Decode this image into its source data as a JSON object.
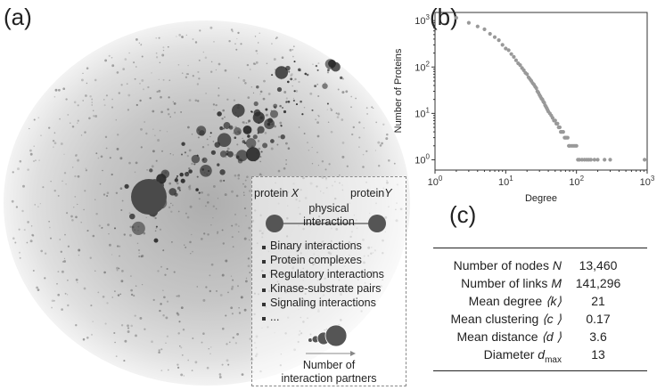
{
  "panel_a": {
    "label": "(a)",
    "legend": {
      "protein_x_prefix": "protein ",
      "protein_x_var": "X",
      "protein_y_prefix": "protein",
      "protein_y_var": "Y",
      "link_label_1": "physical",
      "link_label_2": "interaction",
      "items": [
        "Binary interactions",
        "Protein complexes",
        "Regulatory interactions",
        "Kinase-substrate pairs",
        "Signaling interactions",
        "..."
      ],
      "size_caption_1": "Number of",
      "size_caption_2": "interaction partners"
    },
    "colors": {
      "halo": "#cfcfcf",
      "core": "#9a9a9a",
      "hub": "#2b2b2b"
    }
  },
  "panel_b": {
    "label": "(b)"
  },
  "chart_data": {
    "type": "scatter",
    "xlabel": "Degree",
    "ylabel": "Number of Proteins",
    "xscale": "log",
    "yscale": "log",
    "xlim": [
      1,
      1000
    ],
    "ylim": [
      0.6,
      1500
    ],
    "xticks": [
      "10^0",
      "10^1",
      "10^2",
      "10^3"
    ],
    "yticks": [
      "10^0",
      "10^1",
      "10^2",
      "10^3"
    ],
    "grid": false,
    "marker_color": "#999999",
    "series": [
      {
        "x": [
          2,
          3,
          4,
          5,
          6,
          7,
          8,
          9,
          10,
          11,
          12,
          13,
          14,
          15,
          16,
          17,
          18,
          19,
          20,
          21,
          22,
          23,
          24,
          25,
          26,
          27,
          28,
          29,
          30,
          31,
          32,
          33,
          34,
          35,
          36,
          37,
          38,
          39,
          40,
          42,
          44,
          46,
          48,
          50,
          52,
          54,
          56,
          58,
          60,
          62,
          65,
          68,
          70,
          72,
          75,
          78,
          80,
          85,
          90,
          95,
          100,
          105,
          110,
          120,
          130,
          140,
          150,
          160,
          180,
          200,
          250,
          300,
          920
        ],
        "y": [
          1150,
          900,
          750,
          650,
          520,
          440,
          380,
          300,
          250,
          230,
          190,
          165,
          140,
          120,
          110,
          95,
          85,
          75,
          70,
          60,
          55,
          50,
          45,
          42,
          38,
          35,
          30,
          28,
          25,
          23,
          21,
          20,
          18,
          17,
          15,
          14,
          13,
          12,
          11,
          10,
          9,
          8,
          7,
          7,
          6,
          6,
          5,
          5,
          4,
          4,
          4,
          3,
          3,
          3,
          3,
          2,
          2,
          2,
          2,
          2,
          2,
          1,
          1,
          1,
          1,
          1,
          1,
          1,
          1,
          1,
          1,
          1,
          1
        ]
      }
    ]
  },
  "panel_c": {
    "label": "(c)",
    "rows": [
      {
        "label_text": "Number of nodes ",
        "label_sym": "N",
        "label_sub": "",
        "value": "13,460"
      },
      {
        "label_text": "Number of links ",
        "label_sym": "M",
        "label_sub": "",
        "value": "141,296"
      },
      {
        "label_text": "Mean degree ",
        "label_sym": "⟨k⟩",
        "label_sub": "",
        "value": "21"
      },
      {
        "label_text": "Mean clustering ",
        "label_sym": "⟨c ⟩",
        "label_sub": "",
        "value": "0.17"
      },
      {
        "label_text": "Mean distance ",
        "label_sym": "⟨d ⟩",
        "label_sub": "",
        "value": "3.6"
      },
      {
        "label_text": "Diameter ",
        "label_sym": "d",
        "label_sub": "max",
        "value": "13"
      }
    ]
  }
}
